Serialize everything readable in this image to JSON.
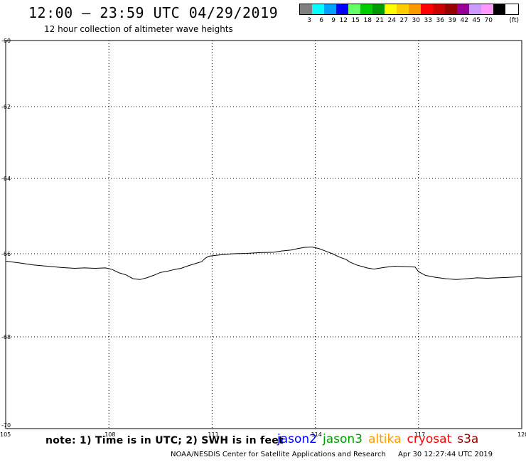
{
  "header": {
    "title": "12:00 – 23:59 UTC 04/29/2019",
    "subtitle": "12 hour collection of altimeter wave heights"
  },
  "legend": {
    "unit": "(ft)",
    "bins": [
      {
        "label": "3",
        "color": "#808080"
      },
      {
        "label": "6",
        "color": "#00ffff"
      },
      {
        "label": "9",
        "color": "#00a0ff"
      },
      {
        "label": "12",
        "color": "#0000ff"
      },
      {
        "label": "15",
        "color": "#66ff66"
      },
      {
        "label": "18",
        "color": "#00cc00"
      },
      {
        "label": "21",
        "color": "#009900"
      },
      {
        "label": "24",
        "color": "#ffff00"
      },
      {
        "label": "27",
        "color": "#ffcc00"
      },
      {
        "label": "30",
        "color": "#ff9900"
      },
      {
        "label": "33",
        "color": "#ff0000"
      },
      {
        "label": "36",
        "color": "#cc0000"
      },
      {
        "label": "39",
        "color": "#990000"
      },
      {
        "label": "42",
        "color": "#990099"
      },
      {
        "label": "45",
        "color": "#cc99ff"
      },
      {
        "label": "70",
        "color": "#ff99ff"
      },
      {
        "label": "",
        "color": "#000000"
      }
    ]
  },
  "map": {
    "lon_range": [
      105,
      120
    ],
    "lat_range": [
      -60,
      -70
    ],
    "lon_ticks": [
      "105",
      "108",
      "111",
      "114",
      "117",
      "120"
    ],
    "lat_ticks": [
      "-60",
      "-62",
      "-64",
      "-66",
      "-68",
      "-70"
    ],
    "coastline": [
      [
        105.0,
        -66.18
      ],
      [
        105.4,
        -66.22
      ],
      [
        105.8,
        -66.27
      ],
      [
        106.2,
        -66.3
      ],
      [
        106.6,
        -66.33
      ],
      [
        107.0,
        -66.35
      ],
      [
        107.3,
        -66.34
      ],
      [
        107.6,
        -66.35
      ],
      [
        107.9,
        -66.34
      ],
      [
        108.1,
        -66.38
      ],
      [
        108.3,
        -66.46
      ],
      [
        108.5,
        -66.51
      ],
      [
        108.7,
        -66.6
      ],
      [
        108.9,
        -66.62
      ],
      [
        109.1,
        -66.58
      ],
      [
        109.3,
        -66.52
      ],
      [
        109.5,
        -66.45
      ],
      [
        109.7,
        -66.42
      ],
      [
        109.9,
        -66.38
      ],
      [
        110.1,
        -66.35
      ],
      [
        110.3,
        -66.29
      ],
      [
        110.5,
        -66.24
      ],
      [
        110.7,
        -66.19
      ],
      [
        110.8,
        -66.11
      ],
      [
        110.9,
        -66.06
      ],
      [
        111.2,
        -66.03
      ],
      [
        111.6,
        -66.0
      ],
      [
        112.0,
        -65.99
      ],
      [
        112.4,
        -65.97
      ],
      [
        112.8,
        -65.96
      ],
      [
        113.0,
        -65.93
      ],
      [
        113.3,
        -65.9
      ],
      [
        113.5,
        -65.86
      ],
      [
        113.7,
        -65.83
      ],
      [
        113.9,
        -65.82
      ],
      [
        114.1,
        -65.86
      ],
      [
        114.3,
        -65.93
      ],
      [
        114.5,
        -66.0
      ],
      [
        114.7,
        -66.08
      ],
      [
        114.9,
        -66.14
      ],
      [
        115.0,
        -66.2
      ],
      [
        115.2,
        -66.27
      ],
      [
        115.5,
        -66.34
      ],
      [
        115.7,
        -66.37
      ],
      [
        116.0,
        -66.33
      ],
      [
        116.3,
        -66.3
      ],
      [
        116.6,
        -66.31
      ],
      [
        116.9,
        -66.32
      ],
      [
        117.0,
        -66.43
      ],
      [
        117.2,
        -66.52
      ],
      [
        117.5,
        -66.57
      ],
      [
        117.8,
        -66.6
      ],
      [
        118.1,
        -66.62
      ],
      [
        118.4,
        -66.6
      ],
      [
        118.7,
        -66.58
      ],
      [
        119.0,
        -66.59
      ],
      [
        119.3,
        -66.58
      ],
      [
        119.6,
        -66.57
      ],
      [
        120.0,
        -66.55
      ]
    ]
  },
  "footer": {
    "note": "note: 1) Time is in UTC; 2) SWH is in feet",
    "satellites": [
      {
        "name": "jason2",
        "color": "#0000ff"
      },
      {
        "name": "jason3",
        "color": "#00a000"
      },
      {
        "name": "altika",
        "color": "#ff9900"
      },
      {
        "name": "cryosat",
        "color": "#ff0000"
      },
      {
        "name": "s3a",
        "color": "#990000"
      }
    ],
    "credit": "NOAA/NESDIS Center for Satellite Applications and Research",
    "timestamp": "Apr 30 12:27:44 UTC 2019"
  }
}
